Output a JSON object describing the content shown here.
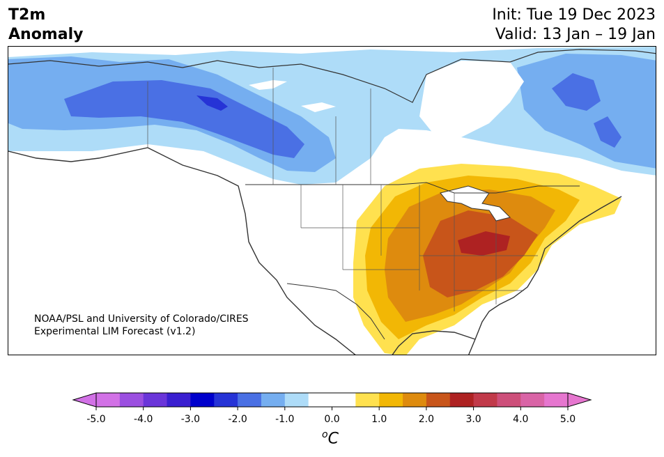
{
  "title": {
    "line1": "T2m",
    "line2": "Anomaly",
    "init": "Init: Tue 19 Dec 2023",
    "valid": "Valid: 13 Jan – 19 Jan"
  },
  "credit": {
    "line1": "NOAA/PSL and University of Colorado/CIRES",
    "line2": "Experimental LIM Forecast (v1.2)"
  },
  "colorbar": {
    "unit_base": "C",
    "unit_sup": "o",
    "ticks": [
      "-5.0",
      "-4.0",
      "-3.0",
      "-2.0",
      "-1.0",
      "0.0",
      "1.0",
      "2.0",
      "3.0",
      "4.0",
      "5.0"
    ],
    "colors": [
      "#d271e6",
      "#9b4fe0",
      "#6a35d9",
      "#3a1fd0",
      "#0000cc",
      "#2633d6",
      "#4a70e4",
      "#75aef0",
      "#aedcf8",
      "#ffffff",
      "#ffffff",
      "#ffe14f",
      "#f2b705",
      "#de8b0e",
      "#c8551a",
      "#ae2222",
      "#c13a4a",
      "#cd4f7a",
      "#d964a6",
      "#e676cf"
    ],
    "under_color": "#d271e6",
    "over_color": "#e676cf"
  },
  "map": {
    "ocean_color": "#ffffff",
    "coast_color": "#333333"
  }
}
